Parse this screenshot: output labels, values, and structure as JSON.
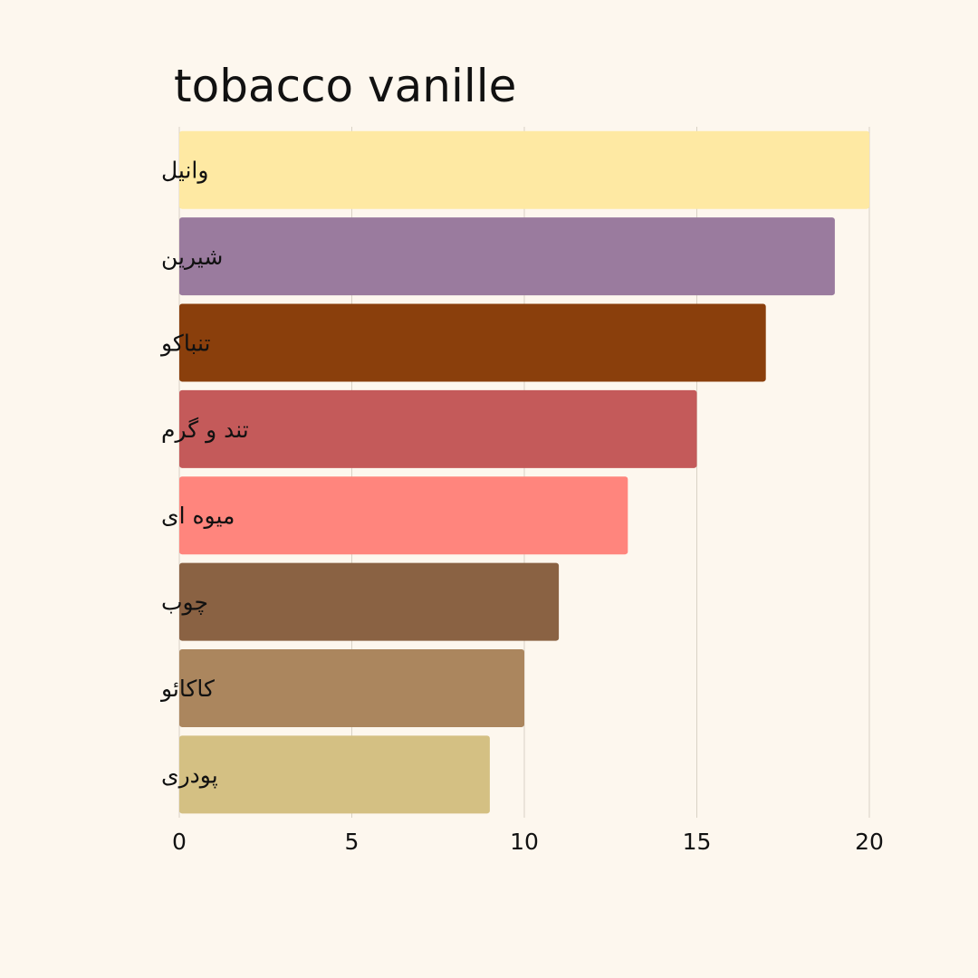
{
  "chart_data": {
    "type": "bar",
    "orientation": "horizontal",
    "title": "tobacco vanille",
    "xlabel": "",
    "ylabel": "",
    "xlim": [
      0,
      20
    ],
    "x_ticks": [
      "0",
      "5",
      "10",
      "15",
      "20"
    ],
    "grid": "vertical",
    "categories": [
      "وانیل",
      "شیرین",
      "تنباکو",
      "تند و گرم",
      "میوه ای",
      "چوب",
      "کاکائو",
      "پودری"
    ],
    "values": [
      20,
      19,
      17,
      15,
      13,
      11,
      10,
      9
    ],
    "colors": [
      "#fee9a3",
      "#9a7b9e",
      "#8a3f0c",
      "#c45a5a",
      "#ff857d",
      "#8a6243",
      "#ab865e",
      "#d4c083"
    ],
    "background": "#fdf7ee"
  }
}
